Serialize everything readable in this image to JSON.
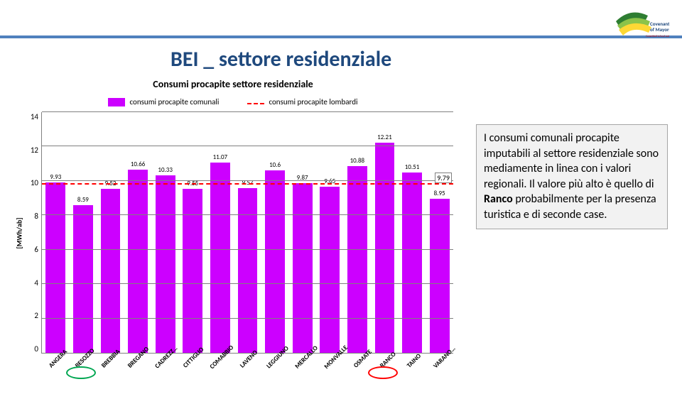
{
  "title": "BEI _ settore residenziale",
  "logo": {
    "line1": "Covenant",
    "line2": "of Mayors",
    "tagline": "Committed to local sustainable energy"
  },
  "annotation": {
    "pre": "I consumi comunali procapite imputabili al settore residenziale sono mediamente in linea con i valori regionali. Il valore più alto è quello di ",
    "bold": "Ranco",
    "post": " probabilmente per la presenza turistica e di seconde case."
  },
  "chart": {
    "type": "bar",
    "title": "Consumi procapite settore residenziale",
    "yaxis_label": "[MWh/ab]",
    "ylim": [
      0,
      14
    ],
    "yticks": [
      0,
      2,
      4,
      6,
      8,
      10,
      12,
      14
    ],
    "legend": [
      {
        "label": "consumi procapite comunali",
        "color": "#cc00ff",
        "style": "fill"
      },
      {
        "label": "consumi procapite lombardi",
        "color": "#ff0000",
        "style": "dash"
      }
    ],
    "reference": {
      "value": 9.79,
      "label": "9.79",
      "color": "#ff0000"
    },
    "bar_color": "#cc00ff",
    "categories": [
      "ANGERA",
      "BESOZZO",
      "BREBBIA",
      "BREGANO",
      "CADREZZ…",
      "CITTIGLIO",
      "COMABBIO",
      "LAVENO",
      "LEGGIUNO",
      "MERCALLO",
      "MONVALLE",
      "OSMATE",
      "RANCO",
      "TAINO",
      "VARANO…"
    ],
    "values": [
      9.93,
      8.59,
      9.52,
      10.66,
      10.33,
      9.55,
      11.07,
      9.57,
      10.6,
      9.87,
      9.65,
      10.88,
      12.21,
      10.51,
      8.95
    ],
    "highlights": [
      {
        "index": 1,
        "color": "#00a651"
      },
      {
        "index": 12,
        "color": "#ff0000"
      }
    ]
  }
}
